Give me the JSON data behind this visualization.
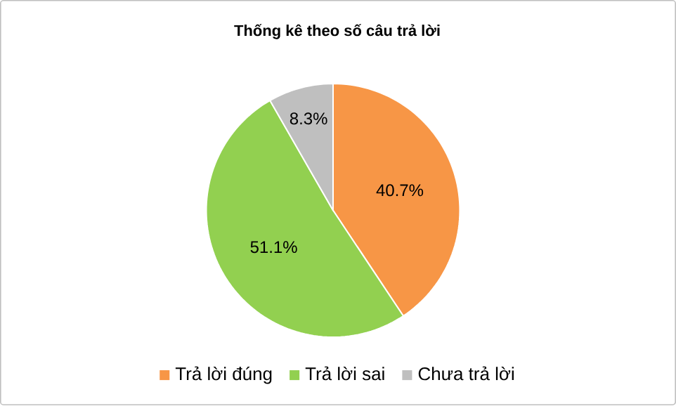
{
  "chart_data": {
    "type": "pie",
    "title": "Thống kê theo số câu trả lời",
    "categories": [
      "Trả lời đúng",
      "Trả lời sai",
      "Chưa trả lời"
    ],
    "values": [
      40.7,
      51.1,
      8.3
    ],
    "value_labels": [
      "40.7%",
      "51.1%",
      "8.3%"
    ],
    "colors": [
      "#f79646",
      "#92d050",
      "#bfbfbf"
    ],
    "legend": "bottom"
  }
}
